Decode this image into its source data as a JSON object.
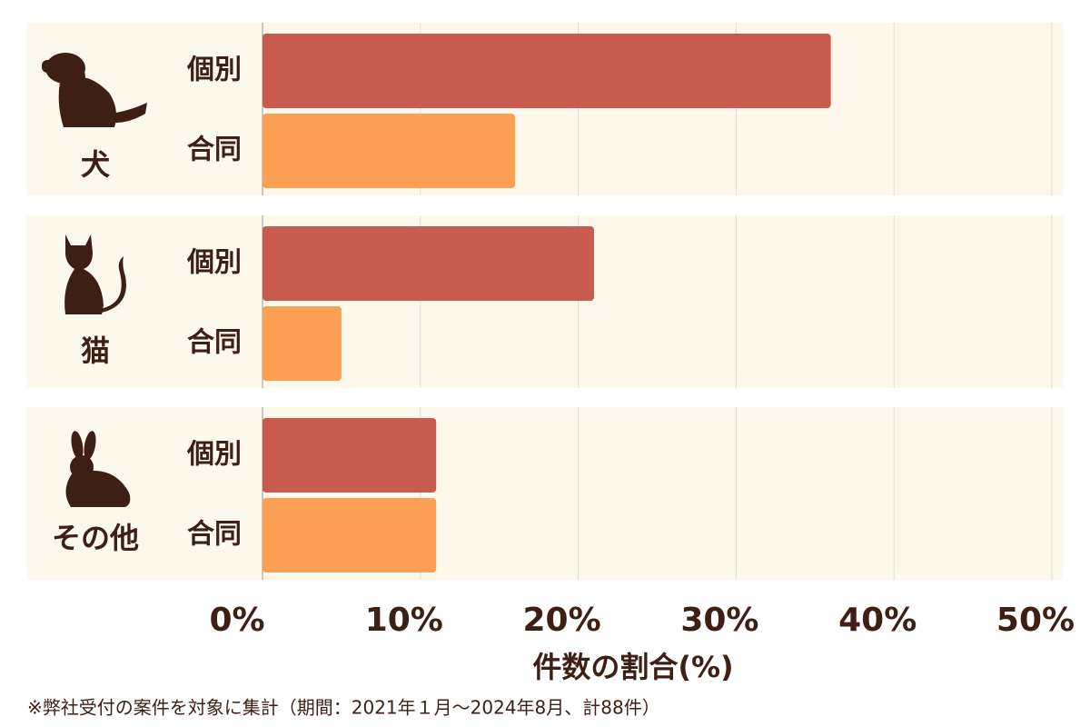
{
  "chart_data": {
    "type": "bar",
    "orientation": "horizontal",
    "categories": [
      "犬",
      "猫",
      "その他"
    ],
    "series": [
      {
        "name": "個別",
        "color": "#c75b4d",
        "values": [
          36,
          21,
          11
        ]
      },
      {
        "name": "合同",
        "color": "#fba054",
        "values": [
          16,
          5,
          11
        ]
      }
    ],
    "xlim": [
      0,
      50
    ],
    "xticks": [
      {
        "value": 0,
        "label": "0%"
      },
      {
        "value": 10,
        "label": "10%"
      },
      {
        "value": 20,
        "label": "20%"
      },
      {
        "value": 30,
        "label": "30%"
      },
      {
        "value": 40,
        "label": "40%"
      },
      {
        "value": 50,
        "label": "50%"
      }
    ],
    "xlabel": "件数の割合(%)",
    "grid": true,
    "footnote": "※弊社受付の案件を対象に集計（期間：2021年１月～2024年8月、計88件）"
  }
}
